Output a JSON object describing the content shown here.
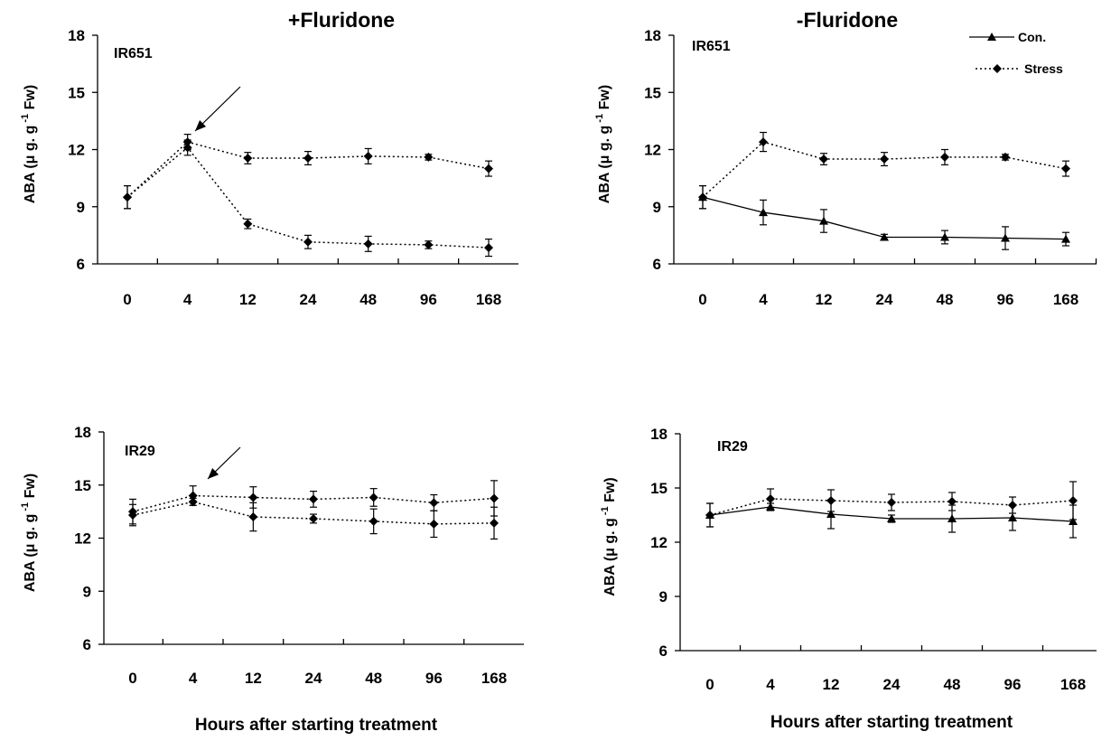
{
  "figure": {
    "xlabel": "Hours after starting treatment",
    "ylabel": {
      "pre": "ABA (",
      "mu": "μ",
      "mid": " g. g",
      "sup": " -1",
      "post": " Fw)"
    },
    "legend": [
      {
        "label": "Con.",
        "marker": "triangle",
        "line": "solid"
      },
      {
        "label": "Stress",
        "marker": "diamond",
        "line": "dotted"
      }
    ],
    "colors": {
      "ink": "#000000",
      "background": "#ffffff"
    }
  },
  "chart_data": [
    {
      "type": "line",
      "title": "+Fluridone",
      "panel_label": "IR651",
      "categories": [
        "0",
        "4",
        "12",
        "24",
        "48",
        "96",
        "168"
      ],
      "ylim": [
        6,
        18
      ],
      "yticks": [
        6,
        9,
        12,
        15,
        18
      ],
      "series": [
        {
          "line": "dotted",
          "marker": "diamond",
          "values": [
            9.5,
            12.4,
            11.55,
            11.55,
            11.65,
            11.6,
            11.0
          ],
          "errors": [
            0.6,
            0.4,
            0.3,
            0.35,
            0.4,
            0.15,
            0.4
          ]
        },
        {
          "line": "dotted",
          "marker": "diamond",
          "values": [
            9.5,
            12.1,
            8.1,
            7.15,
            7.05,
            7.0,
            6.85
          ],
          "errors": [
            0.6,
            0.4,
            0.25,
            0.35,
            0.4,
            0.2,
            0.45
          ]
        }
      ],
      "annotations": [
        {
          "type": "arrow",
          "target_category": "4"
        }
      ],
      "grid": false
    },
    {
      "type": "line",
      "title": "-Fluridone",
      "panel_label": "IR651",
      "categories": [
        "0",
        "4",
        "12",
        "24",
        "48",
        "96",
        "168"
      ],
      "ylim": [
        6,
        18
      ],
      "yticks": [
        6,
        9,
        12,
        15,
        18
      ],
      "legend_position": "top-right",
      "series": [
        {
          "name": "Con.",
          "line": "solid",
          "marker": "triangle",
          "values": [
            9.5,
            8.7,
            8.25,
            7.4,
            7.4,
            7.35,
            7.3
          ],
          "errors": [
            0.6,
            0.65,
            0.6,
            0.15,
            0.35,
            0.6,
            0.35
          ]
        },
        {
          "name": "Stress",
          "line": "dotted",
          "marker": "diamond",
          "values": [
            9.5,
            12.4,
            11.5,
            11.5,
            11.6,
            11.6,
            11.0
          ],
          "errors": [
            0.6,
            0.5,
            0.3,
            0.35,
            0.4,
            0.15,
            0.4
          ]
        }
      ],
      "grid": false
    },
    {
      "type": "line",
      "panel_label": "IR29",
      "categories": [
        "0",
        "4",
        "12",
        "24",
        "48",
        "96",
        "168"
      ],
      "ylim": [
        6,
        18
      ],
      "yticks": [
        6,
        9,
        12,
        15,
        18
      ],
      "series": [
        {
          "line": "dotted",
          "marker": "diamond",
          "values": [
            13.5,
            14.4,
            14.3,
            14.2,
            14.3,
            14.0,
            14.25
          ],
          "errors": [
            0.7,
            0.55,
            0.6,
            0.45,
            0.5,
            0.45,
            1.0
          ]
        },
        {
          "line": "dotted",
          "marker": "diamond",
          "values": [
            13.3,
            14.05,
            13.2,
            13.1,
            12.95,
            12.8,
            12.85
          ],
          "errors": [
            0.6,
            0.2,
            0.8,
            0.25,
            0.7,
            0.75,
            0.9
          ]
        }
      ],
      "annotations": [
        {
          "type": "arrow",
          "target_category": "4"
        }
      ],
      "grid": false
    },
    {
      "type": "line",
      "panel_label": "IR29",
      "categories": [
        "0",
        "4",
        "12",
        "24",
        "48",
        "96",
        "168"
      ],
      "ylim": [
        6,
        18
      ],
      "yticks": [
        6,
        9,
        12,
        15,
        18
      ],
      "series": [
        {
          "name": "Con.",
          "line": "solid",
          "marker": "triangle",
          "values": [
            13.5,
            13.95,
            13.55,
            13.3,
            13.3,
            13.35,
            13.15
          ],
          "errors": [
            0.65,
            0.2,
            0.8,
            0.2,
            0.75,
            0.7,
            0.9
          ]
        },
        {
          "name": "Stress",
          "line": "dotted",
          "marker": "diamond",
          "values": [
            13.5,
            14.4,
            14.3,
            14.2,
            14.25,
            14.05,
            14.3
          ],
          "errors": [
            0.65,
            0.55,
            0.6,
            0.45,
            0.5,
            0.45,
            1.05
          ]
        }
      ],
      "grid": false
    }
  ]
}
